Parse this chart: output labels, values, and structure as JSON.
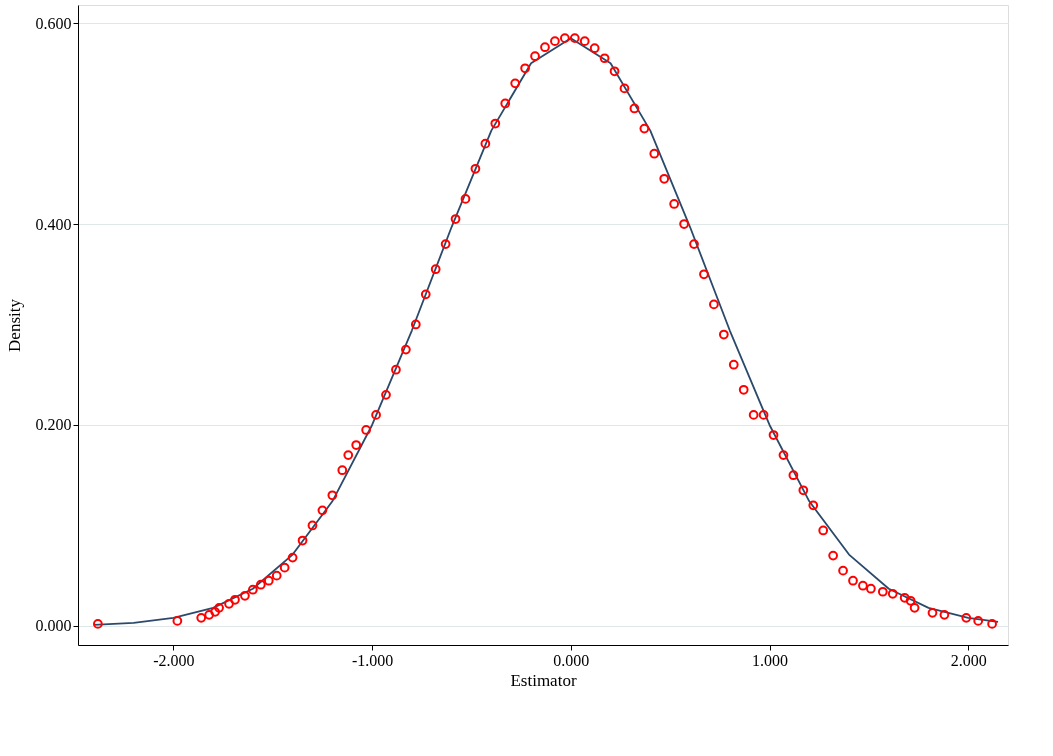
{
  "chart_data": {
    "type": "scatter",
    "xlabel": "Estimator",
    "ylabel": "Density",
    "xlim": [
      -2.48,
      2.2
    ],
    "ylim": [
      -0.019,
      0.618
    ],
    "xticks": [
      {
        "value": -2,
        "label": "-2.000"
      },
      {
        "value": -1,
        "label": "-1.000"
      },
      {
        "value": 0,
        "label": "0.000"
      },
      {
        "value": 1,
        "label": "1.000"
      },
      {
        "value": 2,
        "label": "2.000"
      }
    ],
    "yticks": [
      {
        "value": 0,
        "label": "0.000"
      },
      {
        "value": 0.2,
        "label": "0.200"
      },
      {
        "value": 0.4,
        "label": "0.400"
      },
      {
        "value": 0.6,
        "label": "0.600"
      }
    ],
    "grid": "y",
    "series": [
      {
        "type": "line",
        "color": "#2b4a6b",
        "marker": "none",
        "line_style": "solid",
        "x": [
          -2.4,
          -2.2,
          -2.0,
          -1.8,
          -1.6,
          -1.4,
          -1.2,
          -1.0,
          -0.8,
          -0.6,
          -0.4,
          -0.2,
          0,
          0.2,
          0.4,
          0.6,
          0.8,
          1.0,
          1.2,
          1.4,
          1.6,
          1.8,
          2.0,
          2.15
        ],
        "values": [
          0.001,
          0.003,
          0.008,
          0.018,
          0.037,
          0.071,
          0.124,
          0.2,
          0.294,
          0.397,
          0.493,
          0.56,
          0.585,
          0.56,
          0.493,
          0.397,
          0.294,
          0.2,
          0.124,
          0.071,
          0.037,
          0.018,
          0.008,
          0.004
        ]
      },
      {
        "color": "#ff0000",
        "marker": "circle",
        "x": [
          -2.38,
          -1.98,
          -1.86,
          -1.82,
          -1.79,
          -1.77,
          -1.72,
          -1.69,
          -1.64,
          -1.6,
          -1.56,
          -1.52,
          -1.48,
          -1.44,
          -1.4,
          -1.35,
          -1.3,
          -1.25,
          -1.2,
          -1.15,
          -1.12,
          -1.08,
          -1.03,
          -0.98,
          -0.93,
          -0.88,
          -0.83,
          -0.78,
          -0.73,
          -0.68,
          -0.63,
          -0.58,
          -0.53,
          -0.48,
          -0.43,
          -0.38,
          -0.33,
          -0.28,
          -0.23,
          -0.18,
          -0.13,
          -0.08,
          -0.03,
          0.02,
          0.07,
          0.12,
          0.17,
          0.22,
          0.27,
          0.32,
          0.37,
          0.42,
          0.47,
          0.52,
          0.57,
          0.62,
          0.67,
          0.72,
          0.77,
          0.82,
          0.87,
          0.92,
          0.97,
          1.02,
          1.07,
          1.12,
          1.17,
          1.22,
          1.27,
          1.32,
          1.37,
          1.42,
          1.47,
          1.51,
          1.57,
          1.62,
          1.68,
          1.71,
          1.73,
          1.82,
          1.88,
          1.99,
          2.05,
          2.12
        ],
        "values": [
          0.002,
          0.005,
          0.008,
          0.011,
          0.014,
          0.018,
          0.022,
          0.026,
          0.03,
          0.036,
          0.041,
          0.045,
          0.05,
          0.058,
          0.068,
          0.085,
          0.1,
          0.115,
          0.13,
          0.155,
          0.17,
          0.18,
          0.195,
          0.21,
          0.23,
          0.255,
          0.275,
          0.3,
          0.33,
          0.355,
          0.38,
          0.405,
          0.425,
          0.455,
          0.48,
          0.5,
          0.52,
          0.54,
          0.555,
          0.567,
          0.576,
          0.582,
          0.585,
          0.585,
          0.582,
          0.575,
          0.565,
          0.552,
          0.535,
          0.515,
          0.495,
          0.47,
          0.445,
          0.42,
          0.4,
          0.38,
          0.35,
          0.32,
          0.29,
          0.26,
          0.235,
          0.21,
          0.21,
          0.19,
          0.17,
          0.15,
          0.135,
          0.12,
          0.095,
          0.07,
          0.055,
          0.045,
          0.04,
          0.037,
          0.034,
          0.032,
          0.028,
          0.025,
          0.018,
          0.013,
          0.011,
          0.008,
          0.005,
          0.002
        ]
      }
    ]
  }
}
